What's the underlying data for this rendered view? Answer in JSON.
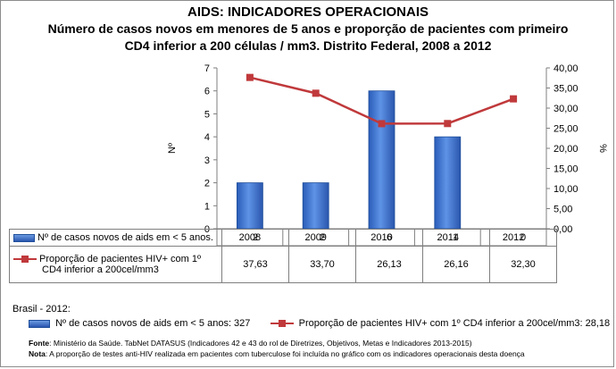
{
  "title": "AIDS: INDICADORES OPERACIONAIS",
  "subtitle_line1": "Número de casos novos em menores de 5 anos e proporção de pacientes com primeiro",
  "subtitle_line2": "CD4 inferior a 200 células / mm3. Distrito Federal, 2008 a 2012",
  "chart_data": {
    "type": "bar+line",
    "categories": [
      "2008",
      "2009",
      "2010",
      "2011",
      "2012"
    ],
    "series": [
      {
        "name": "Nº de casos novos de aids em < 5 anos.",
        "type": "bar",
        "axis": "left",
        "values": [
          2,
          2,
          6,
          4,
          0
        ],
        "display": [
          "2",
          "2",
          "6",
          "4",
          "0"
        ],
        "color": "#3a6fcc"
      },
      {
        "name": "Proporção de pacientes HIV+ com 1º CD4 inferior a 200cel/mm3",
        "type": "line",
        "axis": "right",
        "values": [
          37.63,
          33.7,
          26.13,
          26.16,
          32.3
        ],
        "display": [
          "37,63",
          "33,70",
          "26,13",
          "26,16",
          "32,30"
        ],
        "color": "#c0393b"
      }
    ],
    "ylabel": "Nº",
    "ylabel_right": "%",
    "ylim": [
      0,
      7
    ],
    "ylim_right": [
      0,
      40
    ],
    "y_ticks": [
      "0",
      "1",
      "2",
      "3",
      "4",
      "5",
      "6",
      "7"
    ],
    "y_ticks_right": [
      "0,00",
      "5,00",
      "10,00",
      "15,00",
      "20,00",
      "25,00",
      "30,00",
      "35,00",
      "40,00"
    ],
    "legend_series1_line1": "Proporção de pacientes HIV+ com 1º",
    "legend_series1_line2": "CD4 inferior a 200cel/mm3"
  },
  "brasil": {
    "label": "Brasil - 2012:",
    "bar_text": "Nº de casos novos de aids em < 5 anos: 327",
    "line_text": "Proporção de pacientes HIV+ com 1º CD4 inferior a 200cel/mm3: 28,18"
  },
  "notes": {
    "fonte_label": "Fonte",
    "fonte_text": ": Ministério da Saúde. TabNet DATASUS (Indicadores 42 e 43 do rol de Diretrizes, Objetivos, Metas e Indicadores 2013-2015)",
    "nota_label": "Nota",
    "nota_text": ": A proporção de testes anti-HIV realizada em pacientes com tuberculose foi incluída no gráfico com os indicadores operacionais desta doença"
  }
}
